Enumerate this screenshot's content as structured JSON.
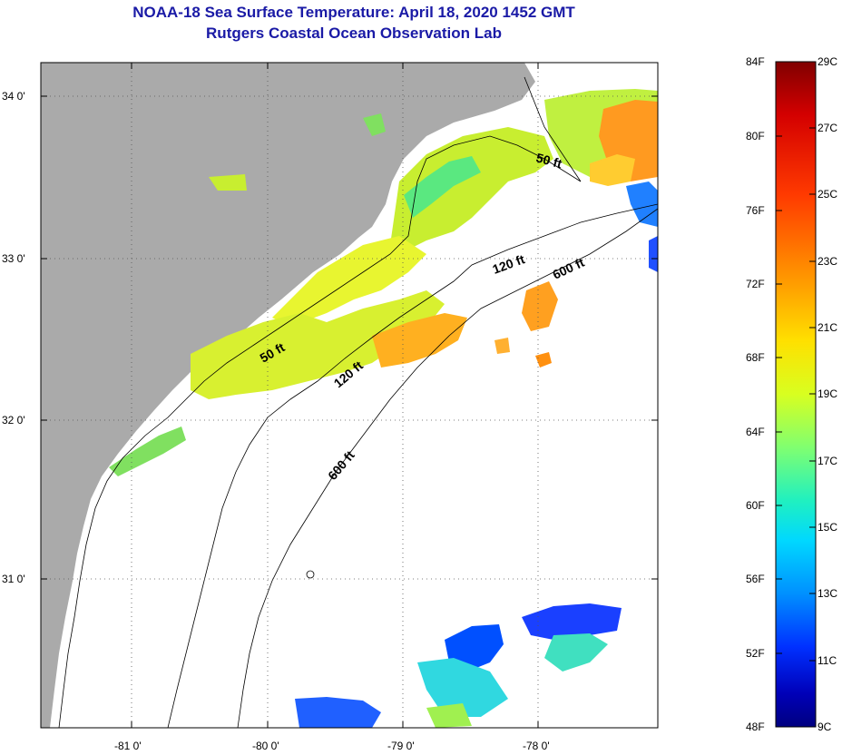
{
  "title": {
    "line1": "NOAA-18 Sea Surface Temperature:  April 18, 2020 1452 GMT",
    "line2": "Rutgers Coastal Ocean Observation Lab"
  },
  "map": {
    "lat_labels": [
      "34 0'",
      "33 0'",
      "32 0'",
      "31 0'"
    ],
    "lon_labels": [
      "-81 0'",
      "-80 0'",
      "-79 0'",
      "-78 0'"
    ],
    "contour_labels": [
      "50 ft",
      "120 ft",
      "600 ft",
      "50 ft",
      "120 ft",
      "600 ft"
    ],
    "colors": {
      "land": "#aaaaaa",
      "cloud": "#ffffff",
      "grid": "#555555"
    }
  },
  "colorbar": {
    "f_labels": [
      "84F",
      "80F",
      "76F",
      "72F",
      "68F",
      "64F",
      "60F",
      "56F",
      "52F",
      "48F"
    ],
    "c_labels": [
      "29C",
      "27C",
      "25C",
      "23C",
      "21C",
      "19C",
      "17C",
      "15C",
      "13C",
      "11C",
      "9C"
    ],
    "colors": [
      "#800000",
      "#d40000",
      "#ff3a00",
      "#ff8c00",
      "#ffd000",
      "#e8ff1a",
      "#9cff5a",
      "#3cf0b0",
      "#00d8ff",
      "#0090ff",
      "#0030ff",
      "#0000b0",
      "#000080"
    ]
  }
}
